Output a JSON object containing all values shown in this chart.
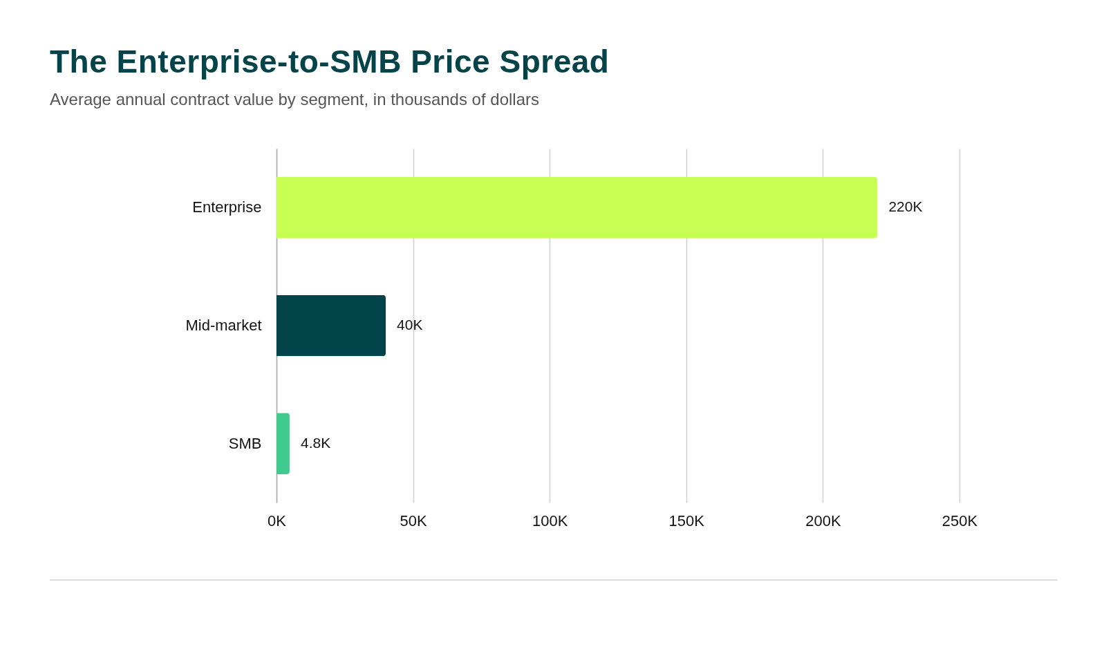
{
  "chart_data": {
    "type": "bar",
    "orientation": "horizontal",
    "title": "The Enterprise-to-SMB Price Spread",
    "subtitle": "Average annual contract value by segment, in thousands of dollars",
    "categories": [
      "Enterprise",
      "Mid-market",
      "SMB"
    ],
    "values": [
      220000,
      40000,
      4800
    ],
    "colors": [
      "#c6ff52",
      "#03444a",
      "#3fcb8d"
    ],
    "value_labels": [
      "220K",
      "40K",
      "4.8K"
    ],
    "xlim": [
      0,
      250000
    ],
    "xticks": [
      {
        "value": 0,
        "label": "0K"
      },
      {
        "value": 50000,
        "label": "50K"
      },
      {
        "value": 100000,
        "label": "100K"
      },
      {
        "value": 150000,
        "label": "150K"
      },
      {
        "value": 200000,
        "label": "200K"
      },
      {
        "value": 250000,
        "label": "250K"
      }
    ],
    "grid": "x"
  }
}
